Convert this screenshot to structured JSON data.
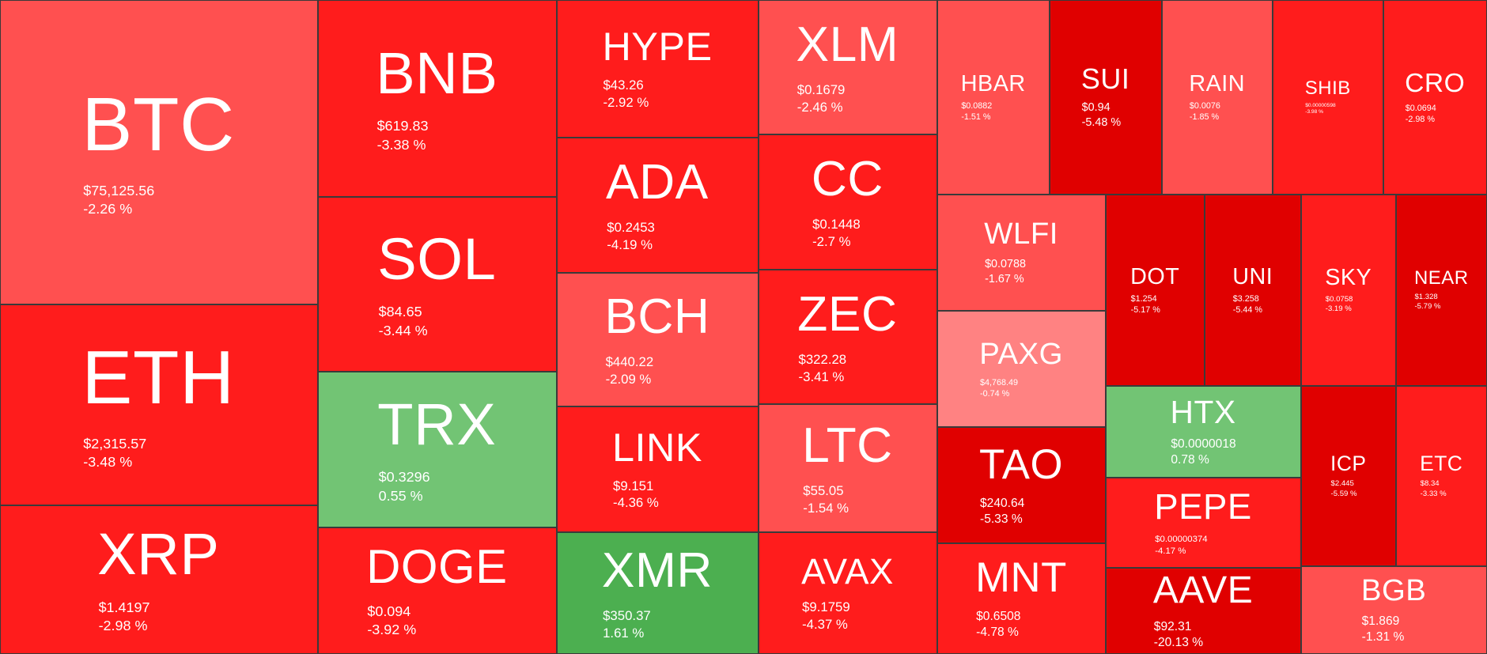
{
  "tiles": [
    {
      "symbol": "BTC",
      "price": "$75,125.56",
      "change": "-2.26 %",
      "color": "#ff5050"
    },
    {
      "symbol": "ETH",
      "price": "$2,315.57",
      "change": "-3.48 %",
      "color": "#ff1c1c"
    },
    {
      "symbol": "XRP",
      "price": "$1.4197",
      "change": "-2.98 %",
      "color": "#ff1c1c"
    },
    {
      "symbol": "BNB",
      "price": "$619.83",
      "change": "-3.38 %",
      "color": "#ff1c1c"
    },
    {
      "symbol": "SOL",
      "price": "$84.65",
      "change": "-3.44 %",
      "color": "#ff1c1c"
    },
    {
      "symbol": "TRX",
      "price": "$0.3296",
      "change": "0.55 %",
      "color": "#72c474"
    },
    {
      "symbol": "DOGE",
      "price": "$0.094",
      "change": "-3.92 %",
      "color": "#ff1c1c"
    },
    {
      "symbol": "HYPE",
      "price": "$43.26",
      "change": "-2.92 %",
      "color": "#ff1c1c"
    },
    {
      "symbol": "ADA",
      "price": "$0.2453",
      "change": "-4.19 %",
      "color": "#ff1c1c"
    },
    {
      "symbol": "BCH",
      "price": "$440.22",
      "change": "-2.09 %",
      "color": "#ff5050"
    },
    {
      "symbol": "LINK",
      "price": "$9.151",
      "change": "-4.36 %",
      "color": "#ff1c1c"
    },
    {
      "symbol": "XMR",
      "price": "$350.37",
      "change": "1.61 %",
      "color": "#4caf50"
    },
    {
      "symbol": "XLM",
      "price": "$0.1679",
      "change": "-2.46 %",
      "color": "#ff5050"
    },
    {
      "symbol": "CC",
      "price": "$0.1448",
      "change": "-2.7 %",
      "color": "#ff1c1c"
    },
    {
      "symbol": "ZEC",
      "price": "$322.28",
      "change": "-3.41 %",
      "color": "#ff1c1c"
    },
    {
      "symbol": "LTC",
      "price": "$55.05",
      "change": "-1.54 %",
      "color": "#ff5050"
    },
    {
      "symbol": "AVAX",
      "price": "$9.1759",
      "change": "-4.37 %",
      "color": "#ff1c1c"
    },
    {
      "symbol": "HBAR",
      "price": "$0.0882",
      "change": "-1.51 %",
      "color": "#ff5050"
    },
    {
      "symbol": "SUI",
      "price": "$0.94",
      "change": "-5.48 %",
      "color": "#e00000"
    },
    {
      "symbol": "RAIN",
      "price": "$0.0076",
      "change": "-1.85 %",
      "color": "#ff5050"
    },
    {
      "symbol": "SHIB",
      "price": "$0.00000598",
      "change": "-3.98 %",
      "color": "#ff1c1c"
    },
    {
      "symbol": "CRO",
      "price": "$0.0694",
      "change": "-2.98 %",
      "color": "#ff1c1c"
    },
    {
      "symbol": "WLFI",
      "price": "$0.0788",
      "change": "-1.67 %",
      "color": "#ff5050"
    },
    {
      "symbol": "PAXG",
      "price": "$4,768.49",
      "change": "-0.74 %",
      "color": "#ff8282"
    },
    {
      "symbol": "TAO",
      "price": "$240.64",
      "change": "-5.33 %",
      "color": "#e00000"
    },
    {
      "symbol": "MNT",
      "price": "$0.6508",
      "change": "-4.78 %",
      "color": "#ff1c1c"
    },
    {
      "symbol": "DOT",
      "price": "$1.254",
      "change": "-5.17 %",
      "color": "#e00000"
    },
    {
      "symbol": "UNI",
      "price": "$3.258",
      "change": "-5.44 %",
      "color": "#e00000"
    },
    {
      "symbol": "HTX",
      "price": "$0.0000018",
      "change": "0.78 %",
      "color": "#72c474"
    },
    {
      "symbol": "PEPE",
      "price": "$0.00000374",
      "change": "-4.17 %",
      "color": "#ff1c1c"
    },
    {
      "symbol": "AAVE",
      "price": "$92.31",
      "change": "-20.13 %",
      "color": "#e00000"
    },
    {
      "symbol": "SKY",
      "price": "$0.0758",
      "change": "-3.19 %",
      "color": "#ff1c1c"
    },
    {
      "symbol": "NEAR",
      "price": "$1.328",
      "change": "-5.79 %",
      "color": "#e00000"
    },
    {
      "symbol": "ICP",
      "price": "$2.445",
      "change": "-5.59 %",
      "color": "#e00000"
    },
    {
      "symbol": "ETC",
      "price": "$8.34",
      "change": "-3.33 %",
      "color": "#ff1c1c"
    },
    {
      "symbol": "BGB",
      "price": "$1.869",
      "change": "-1.31 %",
      "color": "#ff5050"
    }
  ]
}
